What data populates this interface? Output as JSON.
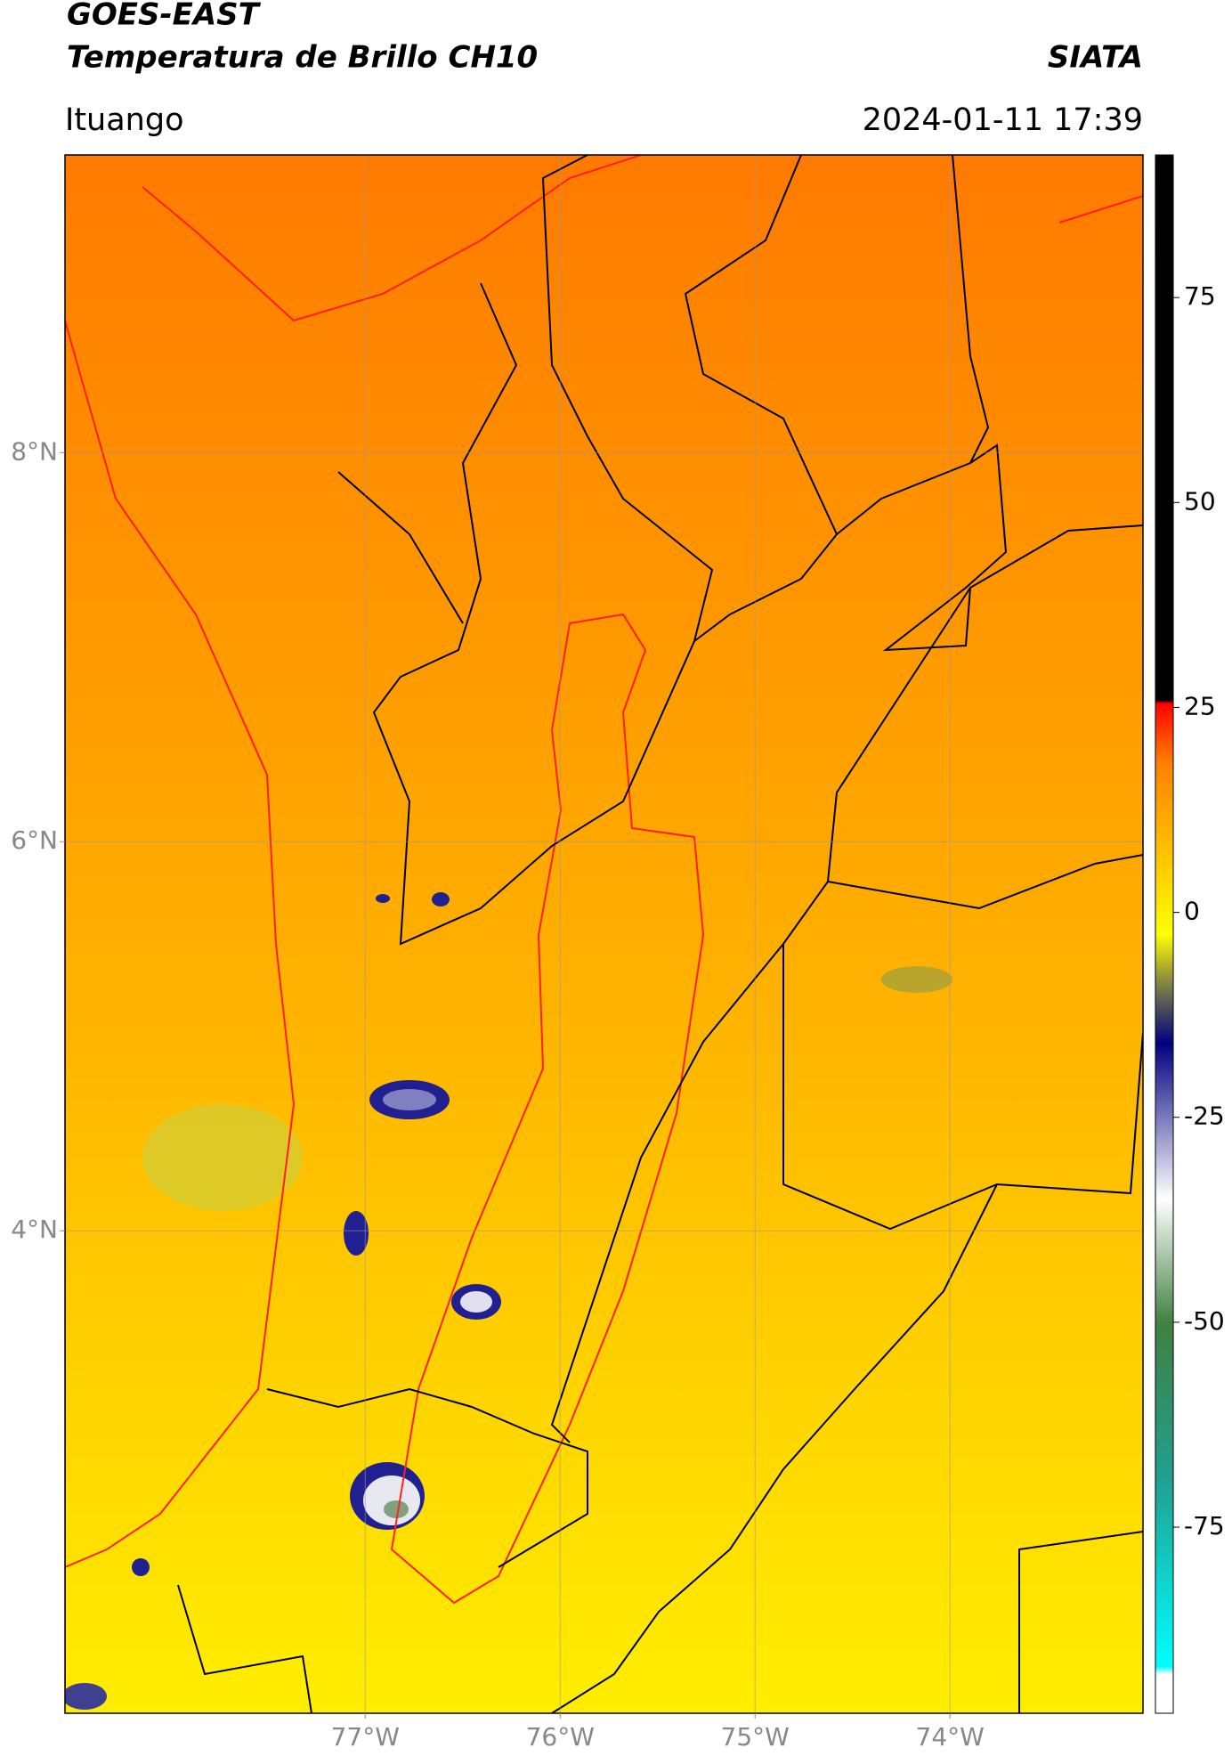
{
  "header": {
    "title": "GOES-EAST",
    "subtitle": "Temperatura de Brillo CH10",
    "organization": "SIATA",
    "location": "Ituango",
    "datetime": "2024-01-11 17:39"
  },
  "map": {
    "xlim": [
      -78.54,
      -73.01
    ],
    "ylim": [
      1.52,
      9.53
    ],
    "xticks": [
      {
        "value": -77,
        "label": "77°W"
      },
      {
        "value": -76,
        "label": "76°W"
      },
      {
        "value": -75,
        "label": "75°W"
      },
      {
        "value": -74,
        "label": "74°W"
      }
    ],
    "yticks": [
      {
        "value": 8,
        "label": "8°N"
      },
      {
        "value": 6,
        "label": "6°N"
      },
      {
        "value": 4,
        "label": "4°N"
      }
    ],
    "grid": true
  },
  "colorbar": {
    "lim": [
      -97.7,
      92.4
    ],
    "ticks": [
      75,
      50,
      25,
      0,
      -25,
      -50,
      -75
    ]
  }
}
